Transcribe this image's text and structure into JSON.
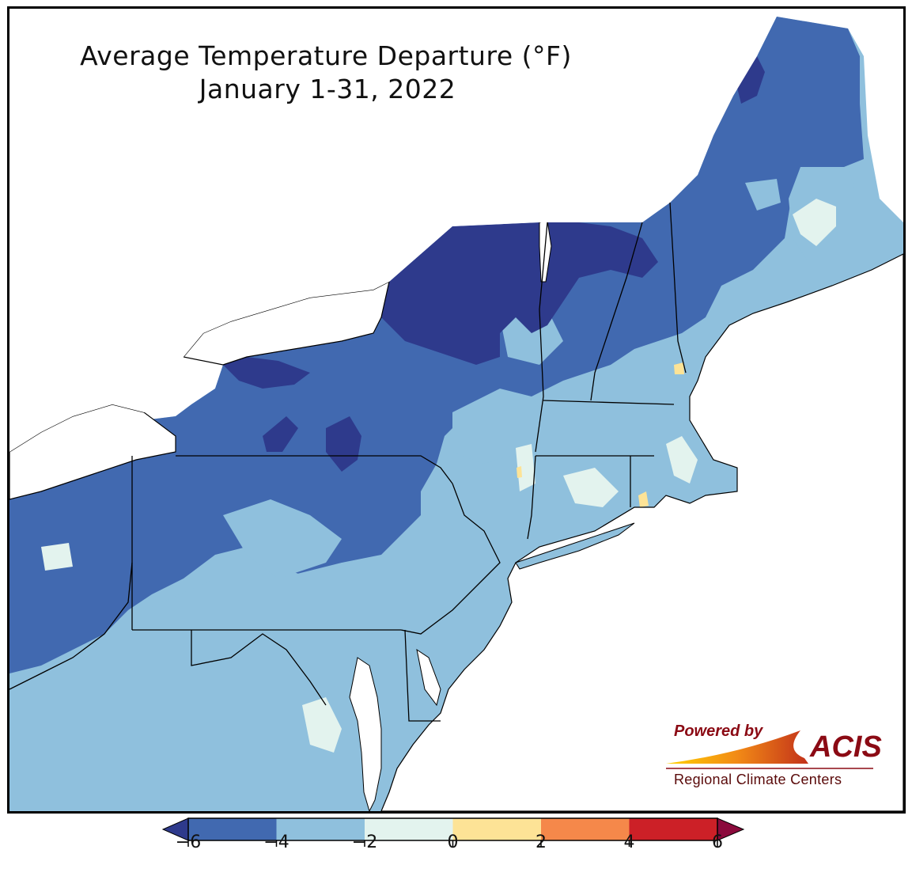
{
  "title": {
    "line1": "Average Temperature Departure (°F)",
    "line2": "January 1-31, 2022"
  },
  "logo": {
    "powered_by": "Powered by",
    "acis": "ACIS",
    "subtitle": "Regional Climate Centers"
  },
  "legend": {
    "ticks": [
      "−6",
      "−4",
      "−2",
      "0",
      "2",
      "4",
      "6"
    ],
    "bins": [
      {
        "range": [
          -6,
          -4
        ],
        "color": "#4169b0"
      },
      {
        "range": [
          -4,
          -2
        ],
        "color": "#8fc0dd"
      },
      {
        "range": [
          -2,
          0
        ],
        "color": "#e3f3ee"
      },
      {
        "range": [
          0,
          2
        ],
        "color": "#fde396"
      },
      {
        "range": [
          2,
          4
        ],
        "color": "#f5884a"
      },
      {
        "range": [
          4,
          6
        ],
        "color": "#cc2027"
      }
    ],
    "under_color": "#2e3a8c",
    "over_color": "#8b0a3c"
  },
  "colors": {
    "very_cold": "#2e3a8c",
    "cold": "#4169b0",
    "cool": "#8fc0dd",
    "near_normal": "#e3f3ee",
    "warm": "#fde396",
    "water": "#ffffff",
    "border": "#000000"
  }
}
